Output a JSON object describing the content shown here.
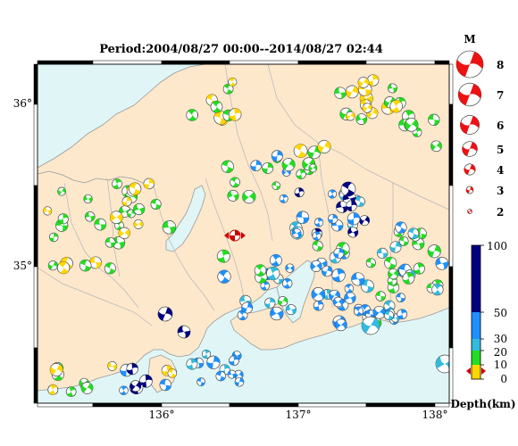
{
  "title": "Period:2004/08/27 00:00--2014/08/27 02:44",
  "map": {
    "lon_ticks": [
      "136°",
      "137°",
      "138°"
    ],
    "lat_ticks": [
      "36°",
      "35°"
    ],
    "sea_color": "#e0f6f6",
    "land_color": "#fde8cc",
    "coast_color": "#aaaaaa"
  },
  "magnitude_legend": {
    "label": "M",
    "levels": [
      "8",
      "7",
      "6",
      "5",
      "4",
      "3",
      "2"
    ],
    "color": "#ee1111"
  },
  "depth_legend": {
    "ticks": [
      "100",
      "50",
      "30",
      "20",
      "10",
      "0"
    ],
    "label": "Depth(km)",
    "colors": [
      "#ffd700",
      "#22dd22",
      "#33bbdd",
      "#1e90ff",
      "#000080"
    ]
  },
  "epicenter_marker": {
    "color": "#cc0000",
    "icon": "star-cross-icon"
  }
}
